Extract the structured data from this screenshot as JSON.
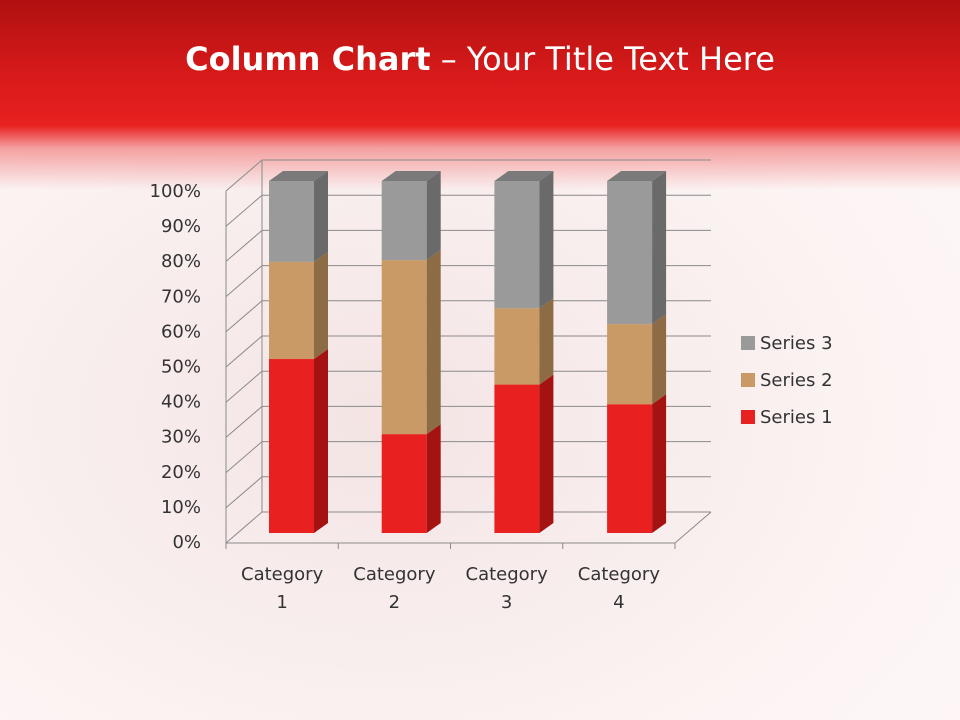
{
  "slide": {
    "title_bold": "Column Chart",
    "title_rest": " – Your Title Text Here"
  },
  "chart_data": {
    "type": "bar",
    "stacking": "percent",
    "three_d": true,
    "title": "",
    "categories": [
      "Category 1",
      "Category 2",
      "Category 3",
      "Category 4"
    ],
    "category_lines": [
      [
        "Category",
        "1"
      ],
      [
        "Category",
        "2"
      ],
      [
        "Category",
        "3"
      ],
      [
        "Category",
        "4"
      ]
    ],
    "series": [
      {
        "name": "Series 1",
        "values": [
          4.3,
          2.5,
          3.5,
          4.5
        ],
        "color": "#e82020",
        "side": "#a51212",
        "top": "#c41818"
      },
      {
        "name": "Series 2",
        "values": [
          2.4,
          4.4,
          1.8,
          2.8
        ],
        "color": "#c99a66",
        "side": "#8c6b45",
        "top": "#a88052"
      },
      {
        "name": "Series 3",
        "values": [
          2,
          2,
          3,
          5
        ],
        "color": "#9a9a9a",
        "side": "#6a6a6a",
        "top": "#7a7a7a"
      }
    ],
    "yticks": [
      "0%",
      "10%",
      "20%",
      "30%",
      "40%",
      "50%",
      "60%",
      "70%",
      "80%",
      "90%",
      "100%"
    ],
    "ylim": [
      0,
      100
    ],
    "grid": true,
    "legend": "right"
  }
}
